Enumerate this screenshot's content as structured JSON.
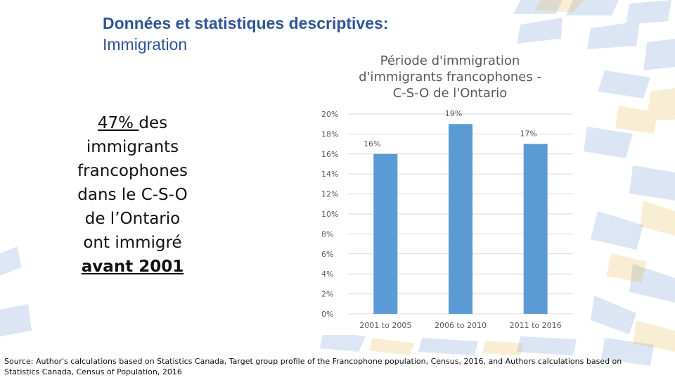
{
  "header": {
    "title": "Données et statistiques descriptives:",
    "subtitle": "Immigration"
  },
  "claim": {
    "percent": "47% ",
    "line1": "des",
    "line2": "immigrants",
    "line3": "francophones",
    "line4": "dans le C-S-O",
    "line5": "de l’Ontario",
    "line6": "ont immigré",
    "period": "avant 2001 "
  },
  "chart_data": {
    "type": "bar",
    "title_lines": [
      "Période d'immigration",
      "d'immigrants francophones  -",
      "C-S-O de l'Ontario"
    ],
    "categories": [
      "2001 to 2005",
      "2006 to 2010",
      "2011 to 2016"
    ],
    "values": [
      16,
      19,
      17
    ],
    "data_labels": [
      "16%",
      "19%",
      "17%"
    ],
    "ylim": [
      0,
      20
    ],
    "y_ticks": [
      0,
      2,
      4,
      6,
      8,
      10,
      12,
      14,
      16,
      18,
      20
    ],
    "y_tick_labels": [
      "0%",
      "2%",
      "4%",
      "6%",
      "8%",
      "10%",
      "12%",
      "14%",
      "16%",
      "18%",
      "20%"
    ],
    "grid": true,
    "bar_color": "#5b9bd5"
  },
  "source": {
    "text": "Source: Author's calculations based on Statistics Canada, Target group profile of the Francophone population, Census, 2016, and Authors calculations based on Statistics Canada, Census of Population, 2016"
  },
  "colors": {
    "title": "#2f5597",
    "decor_blue": "#4472c4",
    "decor_gold": "#e2b33b"
  }
}
